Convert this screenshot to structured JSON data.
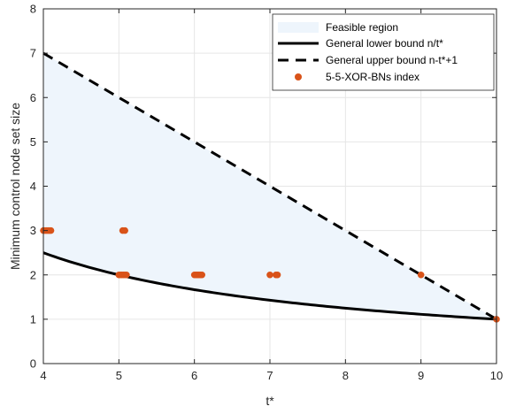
{
  "chart_data": {
    "type": "line",
    "xlabel": "t*",
    "ylabel": "Minimum control node set size",
    "xlim": [
      4,
      10
    ],
    "ylim": [
      0,
      8
    ],
    "xticks": [
      4,
      5,
      6,
      7,
      8,
      9,
      10
    ],
    "yticks": [
      0,
      1,
      2,
      3,
      4,
      5,
      6,
      7,
      8
    ],
    "grid": true,
    "legend_position": "top-right",
    "colors": {
      "region": "#eef5fc",
      "lower": "#000000",
      "upper": "#000000",
      "points": "#d95319",
      "grid": "#e6e6e6"
    },
    "series": [
      {
        "name": "Feasible region",
        "type": "area",
        "description_n": 10
      },
      {
        "name": "General lower bound n/t*",
        "type": "line",
        "style": "solid",
        "formula": "10/t"
      },
      {
        "name": "General upper bound n-t*+1",
        "type": "line",
        "style": "dashed",
        "formula": "11-t"
      },
      {
        "name": "5-5-XOR-BNs index",
        "type": "scatter",
        "points": [
          [
            4.0,
            3
          ],
          [
            4.02,
            3
          ],
          [
            4.04,
            3
          ],
          [
            4.06,
            3
          ],
          [
            4.08,
            3
          ],
          [
            4.1,
            3
          ],
          [
            5.05,
            3
          ],
          [
            5.08,
            3
          ],
          [
            5.0,
            2
          ],
          [
            5.02,
            2
          ],
          [
            5.04,
            2
          ],
          [
            5.06,
            2
          ],
          [
            5.08,
            2
          ],
          [
            5.1,
            2
          ],
          [
            6.0,
            2
          ],
          [
            6.02,
            2
          ],
          [
            6.04,
            2
          ],
          [
            6.06,
            2
          ],
          [
            6.08,
            2
          ],
          [
            6.1,
            2
          ],
          [
            7.0,
            2
          ],
          [
            7.08,
            2
          ],
          [
            7.1,
            2
          ],
          [
            9.0,
            2
          ],
          [
            10.0,
            1
          ]
        ]
      }
    ],
    "legend": {
      "region_label": "Feasible region",
      "lower_label": "General lower bound n/t*",
      "upper_label": "General upper bound n-t*+1",
      "points_label": "5-5-XOR-BNs index"
    }
  }
}
